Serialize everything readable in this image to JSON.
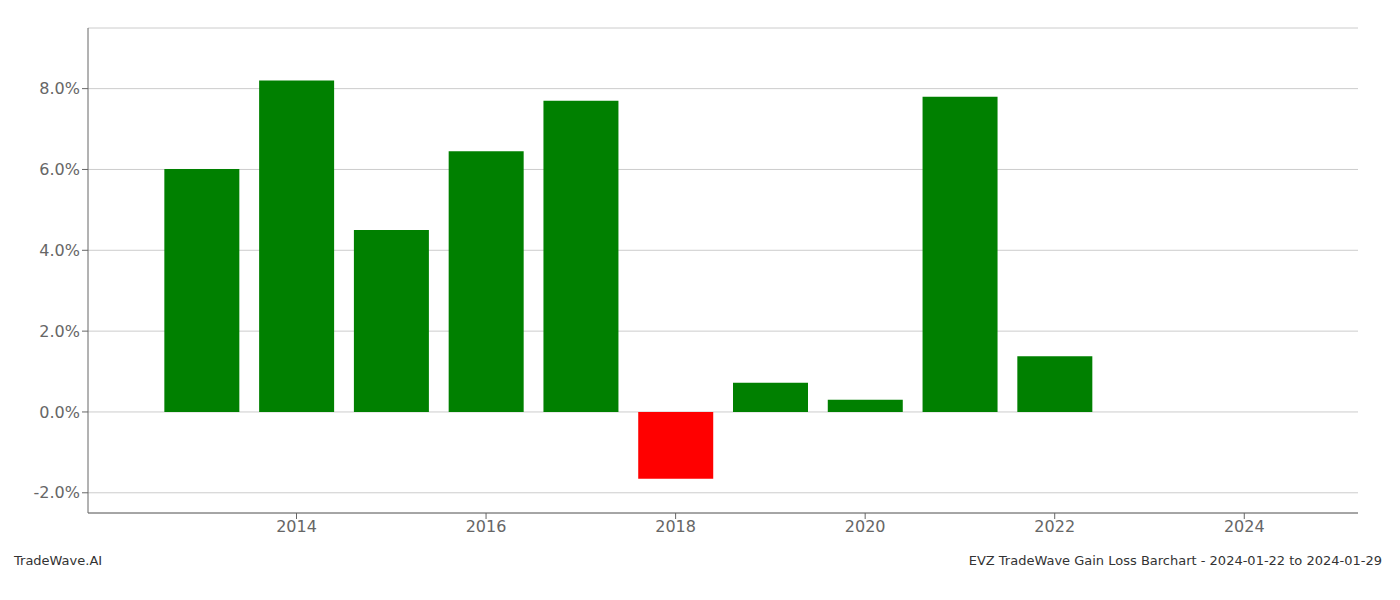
{
  "chart_data": {
    "type": "bar",
    "x": [
      2013,
      2014,
      2015,
      2016,
      2017,
      2018,
      2019,
      2020,
      2021,
      2022
    ],
    "values": [
      0.0601,
      0.082,
      0.045,
      0.0645,
      0.077,
      -0.0165,
      0.0072,
      0.003,
      0.078,
      0.0138
    ],
    "colors": [
      "#008000",
      "#008000",
      "#008000",
      "#008000",
      "#008000",
      "#ff0000",
      "#008000",
      "#008000",
      "#008000",
      "#008000"
    ],
    "xlim": [
      2011.8,
      2025.2
    ],
    "xticks": [
      2014,
      2016,
      2018,
      2020,
      2022,
      2024
    ],
    "ylim": [
      -0.025,
      0.095
    ],
    "yticks": [
      {
        "value": -0.02,
        "label": "-2.0%"
      },
      {
        "value": 0.0,
        "label": "0.0%"
      },
      {
        "value": 0.02,
        "label": "2.0%"
      },
      {
        "value": 0.04,
        "label": "4.0%"
      },
      {
        "value": 0.06,
        "label": "6.0%"
      },
      {
        "value": 0.08,
        "label": "8.0%"
      }
    ],
    "grid": true,
    "annotations": [
      "TradeWave.AI",
      "EVZ TradeWave Gain Loss Barchart - 2024-01-22 to 2024-01-29"
    ]
  }
}
